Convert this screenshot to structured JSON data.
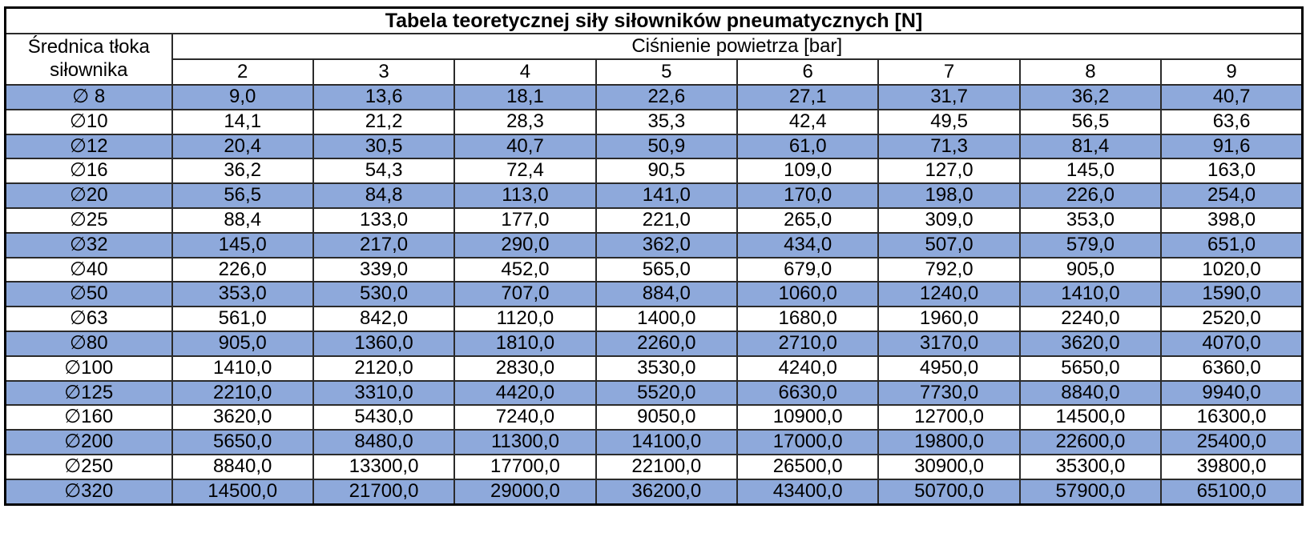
{
  "colors": {
    "band_fill": "#8EA9DB",
    "grid_border": "#2b2b2b",
    "outer_border": "#000000",
    "background": "#FFFFFF",
    "text": "#000000"
  },
  "chart_data": {
    "type": "table",
    "title": "Tabela teoretycznej siły siłowników pneumatycznych [N]",
    "row_header_label": "Średnica tłoka siłownika",
    "column_group_label": "Ciśnienie powietrza [bar]",
    "columns": [
      "2",
      "3",
      "4",
      "5",
      "6",
      "7",
      "8",
      "9"
    ],
    "rows": [
      {
        "label": "∅ 8",
        "values": [
          "9,0",
          "13,6",
          "18,1",
          "22,6",
          "27,1",
          "31,7",
          "36,2",
          "40,7"
        ]
      },
      {
        "label": "∅10",
        "values": [
          "14,1",
          "21,2",
          "28,3",
          "35,3",
          "42,4",
          "49,5",
          "56,5",
          "63,6"
        ]
      },
      {
        "label": "∅12",
        "values": [
          "20,4",
          "30,5",
          "40,7",
          "50,9",
          "61,0",
          "71,3",
          "81,4",
          "91,6"
        ]
      },
      {
        "label": "∅16",
        "values": [
          "36,2",
          "54,3",
          "72,4",
          "90,5",
          "109,0",
          "127,0",
          "145,0",
          "163,0"
        ]
      },
      {
        "label": "∅20",
        "values": [
          "56,5",
          "84,8",
          "113,0",
          "141,0",
          "170,0",
          "198,0",
          "226,0",
          "254,0"
        ]
      },
      {
        "label": "∅25",
        "values": [
          "88,4",
          "133,0",
          "177,0",
          "221,0",
          "265,0",
          "309,0",
          "353,0",
          "398,0"
        ]
      },
      {
        "label": "∅32",
        "values": [
          "145,0",
          "217,0",
          "290,0",
          "362,0",
          "434,0",
          "507,0",
          "579,0",
          "651,0"
        ]
      },
      {
        "label": "∅40",
        "values": [
          "226,0",
          "339,0",
          "452,0",
          "565,0",
          "679,0",
          "792,0",
          "905,0",
          "1020,0"
        ]
      },
      {
        "label": "∅50",
        "values": [
          "353,0",
          "530,0",
          "707,0",
          "884,0",
          "1060,0",
          "1240,0",
          "1410,0",
          "1590,0"
        ]
      },
      {
        "label": "∅63",
        "values": [
          "561,0",
          "842,0",
          "1120,0",
          "1400,0",
          "1680,0",
          "1960,0",
          "2240,0",
          "2520,0"
        ]
      },
      {
        "label": "∅80",
        "values": [
          "905,0",
          "1360,0",
          "1810,0",
          "2260,0",
          "2710,0",
          "3170,0",
          "3620,0",
          "4070,0"
        ]
      },
      {
        "label": "∅100",
        "values": [
          "1410,0",
          "2120,0",
          "2830,0",
          "3530,0",
          "4240,0",
          "4950,0",
          "5650,0",
          "6360,0"
        ]
      },
      {
        "label": "∅125",
        "values": [
          "2210,0",
          "3310,0",
          "4420,0",
          "5520,0",
          "6630,0",
          "7730,0",
          "8840,0",
          "9940,0"
        ]
      },
      {
        "label": "∅160",
        "values": [
          "3620,0",
          "5430,0",
          "7240,0",
          "9050,0",
          "10900,0",
          "12700,0",
          "14500,0",
          "16300,0"
        ]
      },
      {
        "label": "∅200",
        "values": [
          "5650,0",
          "8480,0",
          "11300,0",
          "14100,0",
          "17000,0",
          "19800,0",
          "22600,0",
          "25400,0"
        ]
      },
      {
        "label": "∅250",
        "values": [
          "8840,0",
          "13300,0",
          "17700,0",
          "22100,0",
          "26500,0",
          "30900,0",
          "35300,0",
          "39800,0"
        ]
      },
      {
        "label": "∅320",
        "values": [
          "14500,0",
          "21700,0",
          "29000,0",
          "36200,0",
          "43400,0",
          "50700,0",
          "57900,0",
          "65100,0"
        ]
      }
    ],
    "layout": {
      "banded_rows": "odd rows (1st, 3rd, ...) filled blue",
      "alignment": "all cells centered",
      "grid": "all borders black, thick outer frame"
    }
  }
}
